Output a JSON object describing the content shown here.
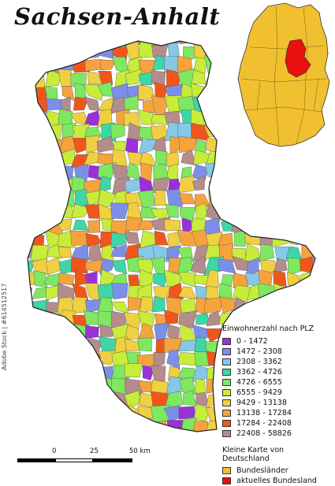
{
  "title": "Sachsen-Anhalt",
  "legend": {
    "heading": "Einwohnerzahl nach PLZ",
    "classes": [
      {
        "label": "0 - 1472",
        "color": "#9b30d8"
      },
      {
        "label": "1472 - 2308",
        "color": "#7b8fe8"
      },
      {
        "label": "2308 - 3362",
        "color": "#86c8e8"
      },
      {
        "label": "3362 - 4726",
        "color": "#3ed6a8"
      },
      {
        "label": "4726 - 6555",
        "color": "#7ee860"
      },
      {
        "label": "6555 - 9429",
        "color": "#c8ec3a"
      },
      {
        "label": "9429 - 13138",
        "color": "#f0d040"
      },
      {
        "label": "13138 - 17284",
        "color": "#f5a33c"
      },
      {
        "label": "17284 - 22408",
        "color": "#f0561a"
      },
      {
        "label": "22408 - 58826",
        "color": "#b48c8c"
      }
    ],
    "inset_heading": "Kleine Karte von Deutschland",
    "inset_entries": [
      {
        "label": "Bundesländer",
        "color": "#f0c030"
      },
      {
        "label": "aktuelles Bundesland",
        "color": "#e81010"
      }
    ]
  },
  "scale": {
    "ticks": [
      "0",
      "25",
      "50 km"
    ]
  },
  "watermark": "Adobe Stock | #614512517"
}
